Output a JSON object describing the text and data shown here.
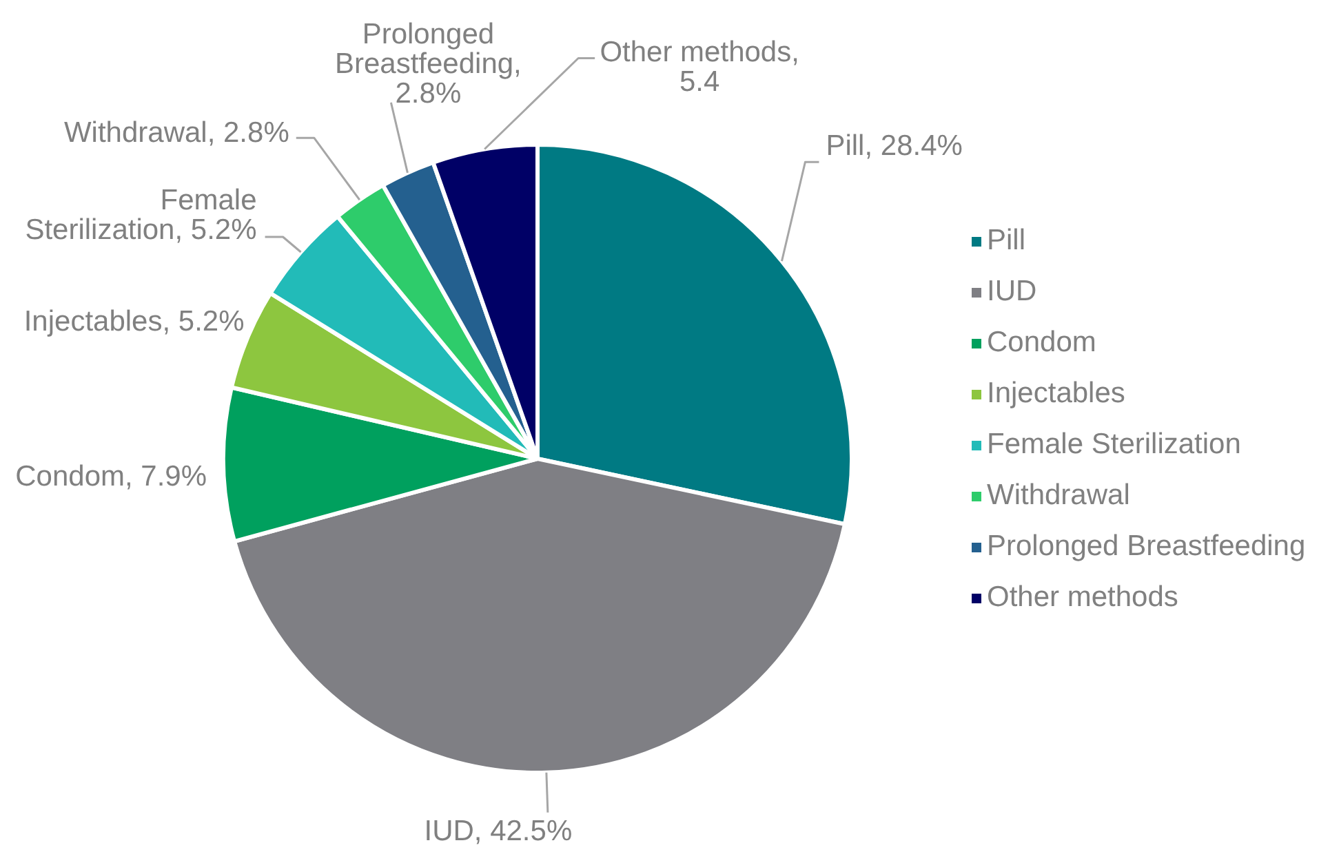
{
  "chart_data": {
    "type": "pie",
    "categories": [
      "Pill",
      "IUD",
      "Condom",
      "Injectables",
      "Female Sterilization",
      "Withdrawal",
      "Prolonged Breastfeeding",
      "Other methods"
    ],
    "values": [
      28.4,
      42.5,
      7.9,
      5.2,
      5.2,
      2.8,
      2.8,
      5.4
    ],
    "colors": [
      "#007a83",
      "#7f7f84",
      "#00a05e",
      "#8dc63f",
      "#22bbb8",
      "#2ecc6b",
      "#24608f",
      "#000066"
    ],
    "value_labels": [
      "Pill, 28.4%",
      "IUD, 42.5%",
      "Condom, 7.9%",
      "Injectables, 5.2%",
      "Female Sterilization, 5.2%",
      "Withdrawal, 2.8%",
      "Prolonged Breastfeeding, 2.8%",
      "Other methods, 5.4"
    ],
    "legend": "right"
  }
}
